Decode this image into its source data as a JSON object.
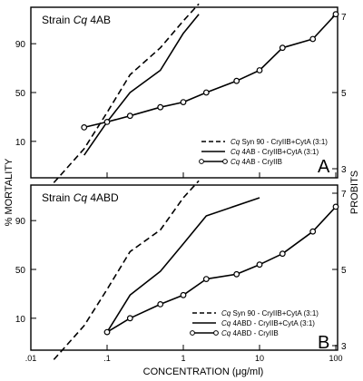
{
  "figure": {
    "y_left_label": "% MORTALITY",
    "y_right_label": "PROBITS",
    "x_label": "CONCENTRATION (μg/ml)"
  },
  "chart_data": [
    {
      "type": "line",
      "panel": "A",
      "title_prefix": "Strain ",
      "title_italic": "Cq",
      "title_suffix": " 4AB",
      "x_scale": "log",
      "y_scale": "probit",
      "xlim": [
        0.01,
        100
      ],
      "ylim_probits": [
        3,
        7
      ],
      "y_ticks_left": [
        "90",
        "50",
        "10"
      ],
      "y_ticks_right": [
        "7",
        "5",
        "3"
      ],
      "x_ticks": [
        ".01",
        ".1",
        "1",
        "10",
        "100"
      ],
      "series": [
        {
          "legend_italic": "Cq",
          "legend_text": " Syn 90 - CryIIB+CytA (3:1)",
          "style": "dashed",
          "marker": "none",
          "x": [
            0.02,
            0.05,
            0.1,
            0.2,
            0.5,
            1,
            1.6
          ],
          "y": [
            0.9,
            7,
            30,
            68,
            88,
            97,
            99
          ]
        },
        {
          "legend_italic": "Cq",
          "legend_text": " 4AB - CryIIB+CytA (3:1)",
          "style": "solid",
          "marker": "none",
          "x": [
            0.05,
            0.1,
            0.2,
            0.5,
            1,
            1.6
          ],
          "y": [
            5,
            22,
            50,
            72,
            94,
            98
          ]
        },
        {
          "legend_italic": "Cq",
          "legend_text": " 4AB - CryIIB",
          "style": "solid",
          "marker": "circle",
          "x": [
            0.05,
            0.1,
            0.2,
            0.5,
            1,
            2,
            5,
            10,
            20,
            50,
            100
          ],
          "y": [
            18,
            22,
            27,
            35,
            40,
            50,
            62,
            72,
            88,
            92,
            98
          ]
        }
      ]
    },
    {
      "type": "line",
      "panel": "B",
      "title_prefix": "Strain ",
      "title_italic": "Cq",
      "title_suffix": " 4ABD",
      "x_scale": "log",
      "y_scale": "probit",
      "xlim": [
        0.01,
        100
      ],
      "ylim_probits": [
        3,
        7
      ],
      "y_ticks_left": [
        "90",
        "50",
        "10"
      ],
      "y_ticks_right": [
        "7",
        "5",
        "3"
      ],
      "x_ticks": [
        ".01",
        ".1",
        "1",
        "10",
        "100"
      ],
      "series": [
        {
          "legend_italic": "Cq",
          "legend_text": " Syn 90 - CryIIB+CytA (3:1)",
          "style": "dashed",
          "marker": "none",
          "x": [
            0.02,
            0.05,
            0.1,
            0.2,
            0.5,
            1,
            1.6
          ],
          "y": [
            0.9,
            7,
            30,
            68,
            85,
            97,
            99
          ]
        },
        {
          "legend_italic": "Cq",
          "legend_text": " 4ABD - CryIIB+CytA (3:1)",
          "style": "solid",
          "marker": "none",
          "x": [
            0.1,
            0.2,
            0.5,
            1,
            2,
            10
          ],
          "y": [
            5,
            25,
            48,
            75,
            92,
            97
          ]
        },
        {
          "legend_italic": "Cq",
          "legend_text": " 4ABD - CryIIB",
          "style": "solid",
          "marker": "circle",
          "x": [
            0.1,
            0.2,
            0.5,
            1,
            2,
            5,
            10,
            20,
            50,
            100
          ],
          "y": [
            5,
            10,
            18,
            25,
            40,
            45,
            55,
            66,
            84,
            95
          ]
        }
      ]
    }
  ]
}
